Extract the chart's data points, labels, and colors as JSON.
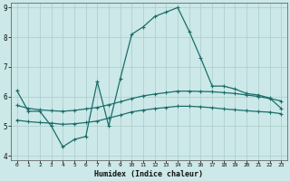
{
  "xlabel": "Humidex (Indice chaleur)",
  "bg_color": "#cce8e8",
  "grid_color": "#aacccc",
  "line_color": "#1a6e6a",
  "xlim_min": -0.5,
  "xlim_max": 23.5,
  "ylim_min": 3.85,
  "ylim_max": 9.15,
  "yticks": [
    4,
    5,
    6,
    7,
    8,
    9
  ],
  "xticks": [
    0,
    1,
    2,
    3,
    4,
    5,
    6,
    7,
    8,
    9,
    10,
    11,
    12,
    13,
    14,
    15,
    16,
    17,
    18,
    19,
    20,
    21,
    22,
    23
  ],
  "line1_y": [
    6.2,
    5.5,
    5.5,
    5.0,
    4.3,
    4.55,
    4.65,
    6.5,
    5.0,
    6.6,
    8.1,
    8.35,
    8.7,
    8.85,
    9.0,
    8.2,
    7.3,
    6.35,
    6.35,
    6.25,
    6.1,
    6.05,
    5.95,
    5.6
  ],
  "line2_y": [
    5.7,
    5.6,
    5.55,
    5.52,
    5.5,
    5.53,
    5.58,
    5.63,
    5.72,
    5.82,
    5.93,
    6.02,
    6.08,
    6.13,
    6.18,
    6.18,
    6.17,
    6.16,
    6.13,
    6.1,
    6.05,
    6.0,
    5.93,
    5.85
  ],
  "line3_y": [
    5.2,
    5.15,
    5.12,
    5.1,
    5.06,
    5.08,
    5.12,
    5.17,
    5.27,
    5.37,
    5.48,
    5.54,
    5.59,
    5.63,
    5.67,
    5.67,
    5.65,
    5.62,
    5.58,
    5.55,
    5.52,
    5.49,
    5.47,
    5.42
  ]
}
